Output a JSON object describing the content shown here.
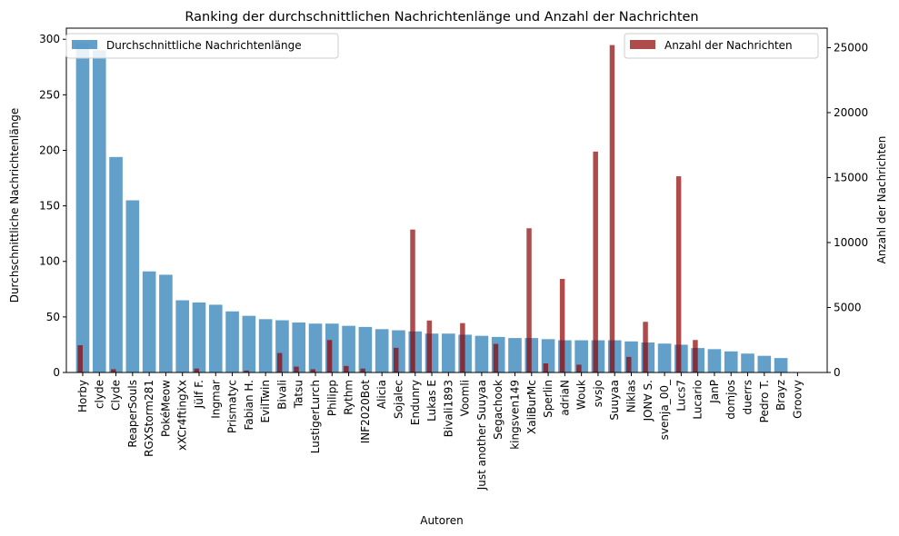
{
  "chart_data": {
    "type": "bar",
    "title": "Ranking der durchschnittlichen Nachrichtenlänge und Anzahl der Nachrichten",
    "xlabel": "Autoren",
    "ylabel": "Durchschnittliche Nachrichtenlänge",
    "y2label": "Anzahl der Nachrichten",
    "ylim": [
      0,
      310
    ],
    "y2lim": [
      0,
      26500
    ],
    "yticks": [
      0,
      50,
      100,
      150,
      200,
      250,
      300
    ],
    "y2ticks": [
      0,
      5000,
      10000,
      15000,
      20000,
      25000
    ],
    "grid": false,
    "categories": [
      "Horby",
      "clyde",
      "Clyde",
      "ReaperSouls",
      "RGXStorm281",
      "PokéMeow",
      "xXCr4ftingXx",
      "Jülf F.",
      "Ingmar",
      "Prismatyc",
      "Fabian H.",
      "EvilTwin",
      "Bivali",
      "Tatsu",
      "LustigerLurch",
      "Philipp",
      "Rythm",
      "INF2020Bot",
      "Alicia",
      "Sojalec",
      "Endunry",
      "Lukas E",
      "Bivali1893",
      "Voomli",
      "Just another Suuyaa",
      "Segachook",
      "kingsven149",
      "XaliBurMc",
      "Sperlin",
      "adriaN",
      "Wouk",
      "svsjo",
      "Suuyaa",
      "Niklas",
      "JO𝖭∀ S.",
      "svenja_00_",
      "Lucs7",
      "Lucario",
      "JanP",
      "domjos",
      "duerrs",
      "Pedro T.",
      "Brayz",
      "Groovy"
    ],
    "series": [
      {
        "name": "Durchschnittliche Nachrichtenlänge",
        "axis": "left",
        "color": "#1f77b4",
        "values": [
          296,
          290,
          194,
          155,
          91,
          88,
          65,
          63,
          61,
          55,
          51,
          48,
          47,
          45,
          44,
          44,
          42,
          41,
          39,
          38,
          37,
          35,
          35,
          34,
          33,
          32,
          31,
          31,
          30,
          29,
          29,
          29,
          29,
          28,
          27,
          26,
          25,
          22,
          21,
          19,
          17,
          15,
          13,
          0
        ]
      },
      {
        "name": "Anzahl der Nachrichten",
        "axis": "right",
        "color": "#8b0000",
        "values": [
          2100,
          0,
          250,
          0,
          0,
          0,
          0,
          300,
          0,
          0,
          150,
          0,
          1500,
          450,
          250,
          2500,
          500,
          300,
          0,
          1900,
          11000,
          4000,
          0,
          3800,
          0,
          2200,
          0,
          11100,
          700,
          7200,
          600,
          17000,
          25200,
          1200,
          3900,
          0,
          15100,
          2500,
          0,
          0,
          0,
          0,
          0,
          0
        ]
      }
    ],
    "legend_left": "upper-left",
    "legend_right": "upper-right"
  }
}
